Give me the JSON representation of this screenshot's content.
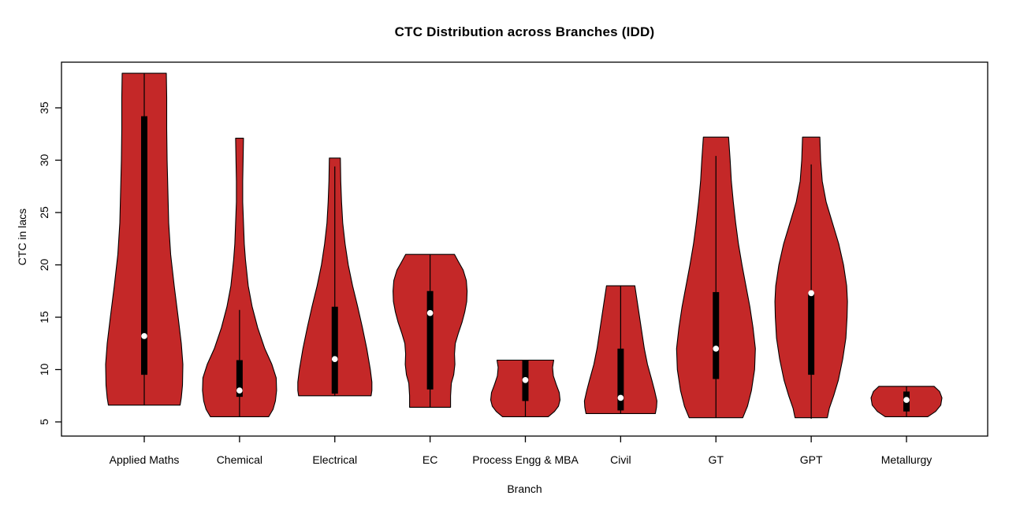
{
  "page": {
    "background": "#ffffff"
  },
  "chart_data": {
    "type": "violin",
    "title": "CTC Distribution across Branches (IDD)",
    "xlabel": "Branch",
    "ylabel": "CTC in lacs",
    "y_ticks": [
      5,
      10,
      15,
      20,
      25,
      30,
      35
    ],
    "y_range_shown": [
      3.7,
      39.4
    ],
    "grid": false,
    "legend": "none",
    "colors": {
      "violin_fill": "#C42828",
      "outline": "#000000",
      "box": "#000000",
      "median_dot": "#ffffff",
      "text": "#000000",
      "background": "#ffffff"
    },
    "categories": [
      "Applied Maths",
      "Chemical",
      "Electrical",
      "EC",
      "Process Engg & MBA",
      "Civil",
      "GT",
      "GPT",
      "Metallurgy"
    ],
    "violins": [
      {
        "label": "Applied Maths",
        "min": 6.6,
        "max": 38.3,
        "q1": 9.5,
        "q3": 34.2,
        "median": 13.2,
        "whisker_low": 6.6,
        "whisker_high": 38.3,
        "profile": [
          [
            38.3,
            28
          ],
          [
            36,
            28.5
          ],
          [
            33,
            28.5
          ],
          [
            30,
            29
          ],
          [
            27,
            30
          ],
          [
            24,
            31
          ],
          [
            21,
            33.5
          ],
          [
            18,
            38
          ],
          [
            15,
            43
          ],
          [
            12.5,
            47
          ],
          [
            10.5,
            49
          ],
          [
            8.5,
            48.5
          ],
          [
            7.3,
            47
          ],
          [
            6.6,
            45.5
          ]
        ]
      },
      {
        "label": "Chemical",
        "min": 5.5,
        "max": 32.1,
        "q1": 7.4,
        "q3": 10.9,
        "median": 8.0,
        "whisker_low": 5.5,
        "whisker_high": 15.7,
        "profile": [
          [
            32.1,
            5
          ],
          [
            30,
            4.5
          ],
          [
            28,
            4
          ],
          [
            26,
            4
          ],
          [
            24,
            5
          ],
          [
            22,
            6
          ],
          [
            20.5,
            7.5
          ],
          [
            18,
            11
          ],
          [
            16,
            16
          ],
          [
            14,
            23
          ],
          [
            12,
            32
          ],
          [
            10.5,
            41
          ],
          [
            9.2,
            46.5
          ],
          [
            8,
            47
          ],
          [
            7,
            45.5
          ],
          [
            6.2,
            42.5
          ],
          [
            5.5,
            37
          ]
        ]
      },
      {
        "label": "Electrical",
        "min": 7.5,
        "max": 30.2,
        "q1": 7.7,
        "q3": 16.0,
        "median": 11.0,
        "whisker_low": 7.5,
        "whisker_high": 29.4,
        "profile": [
          [
            30.2,
            7
          ],
          [
            28,
            7.5
          ],
          [
            26,
            8.5
          ],
          [
            24,
            10
          ],
          [
            22,
            13
          ],
          [
            20,
            17
          ],
          [
            18,
            22.5
          ],
          [
            16,
            29
          ],
          [
            14,
            35
          ],
          [
            12,
            40.5
          ],
          [
            10,
            45
          ],
          [
            8.8,
            47
          ],
          [
            8,
            47
          ],
          [
            7.5,
            46
          ]
        ]
      },
      {
        "label": "EC",
        "min": 6.4,
        "max": 21.0,
        "q1": 8.1,
        "q3": 17.5,
        "median": 15.4,
        "whisker_low": 6.4,
        "whisker_high": 21.0,
        "profile": [
          [
            21,
            31
          ],
          [
            20.3,
            36
          ],
          [
            19.5,
            42
          ],
          [
            18.5,
            46
          ],
          [
            17.5,
            47
          ],
          [
            16.5,
            46.5
          ],
          [
            15.5,
            44
          ],
          [
            14.5,
            40.5
          ],
          [
            13.5,
            36
          ],
          [
            12.5,
            32
          ],
          [
            11.5,
            31
          ],
          [
            10.5,
            31.5
          ],
          [
            9.5,
            30
          ],
          [
            8.7,
            27
          ],
          [
            7.5,
            26
          ],
          [
            6.4,
            26
          ]
        ]
      },
      {
        "label": "Process Engg & MBA",
        "min": 5.5,
        "max": 10.9,
        "q1": 7.0,
        "q3": 10.9,
        "median": 9.0,
        "whisker_low": 5.5,
        "whisker_high": 10.9,
        "profile": [
          [
            10.9,
            36
          ],
          [
            10.2,
            34.5
          ],
          [
            9.4,
            35.5
          ],
          [
            8.6,
            39
          ],
          [
            7.8,
            43
          ],
          [
            7.1,
            44
          ],
          [
            6.5,
            42
          ],
          [
            6.0,
            37
          ],
          [
            5.5,
            29
          ]
        ]
      },
      {
        "label": "Civil",
        "min": 5.8,
        "max": 18.0,
        "q1": 6.1,
        "q3": 12.0,
        "median": 7.3,
        "whisker_low": 5.8,
        "whisker_high": 18.0,
        "profile": [
          [
            18,
            18
          ],
          [
            16.5,
            21
          ],
          [
            15,
            24
          ],
          [
            13.5,
            27
          ],
          [
            12,
            30
          ],
          [
            10.5,
            34
          ],
          [
            9,
            39.5
          ],
          [
            8,
            43
          ],
          [
            7,
            46
          ],
          [
            6.4,
            45.5
          ],
          [
            5.8,
            44
          ]
        ]
      },
      {
        "label": "GT",
        "min": 5.4,
        "max": 32.2,
        "q1": 9.1,
        "q3": 17.4,
        "median": 12.0,
        "whisker_low": 5.4,
        "whisker_high": 30.4,
        "profile": [
          [
            32.2,
            16
          ],
          [
            30,
            18
          ],
          [
            28,
            19.5
          ],
          [
            26,
            22
          ],
          [
            24,
            25
          ],
          [
            22,
            28.5
          ],
          [
            20,
            33
          ],
          [
            18,
            38
          ],
          [
            16,
            43
          ],
          [
            14,
            47
          ],
          [
            12,
            50
          ],
          [
            10,
            49
          ],
          [
            8,
            45
          ],
          [
            6.5,
            40
          ],
          [
            5.4,
            34
          ]
        ]
      },
      {
        "label": "GPT",
        "min": 5.3,
        "max": 32.2,
        "q1": 9.5,
        "q3": 17.3,
        "median": 17.3,
        "whisker_low": 5.3,
        "whisker_high": 29.6,
        "profile": [
          [
            32.2,
            11
          ],
          [
            30,
            12
          ],
          [
            28,
            14
          ],
          [
            26,
            19
          ],
          [
            24,
            27
          ],
          [
            22,
            35
          ],
          [
            20,
            41
          ],
          [
            18,
            45
          ],
          [
            16.5,
            46
          ],
          [
            15,
            45.5
          ],
          [
            13,
            44
          ],
          [
            11,
            40
          ],
          [
            9,
            34.5
          ],
          [
            7.5,
            28.5
          ],
          [
            6.3,
            23
          ],
          [
            5.4,
            20.5
          ]
        ]
      },
      {
        "label": "Metallurgy",
        "min": 5.5,
        "max": 8.4,
        "q1": 6.0,
        "q3": 7.9,
        "median": 7.1,
        "whisker_low": 5.5,
        "whisker_high": 8.4,
        "profile": [
          [
            8.4,
            35
          ],
          [
            7.9,
            42
          ],
          [
            7.3,
            45
          ],
          [
            6.6,
            43.5
          ],
          [
            6.0,
            37
          ],
          [
            5.5,
            27
          ]
        ]
      }
    ]
  }
}
